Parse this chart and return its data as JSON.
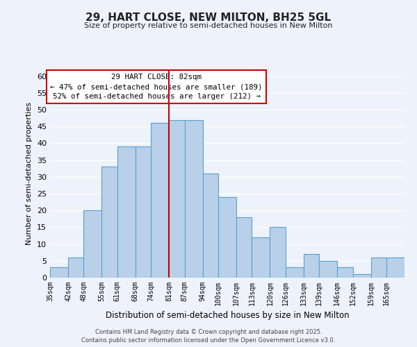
{
  "title": "29, HART CLOSE, NEW MILTON, BH25 5GL",
  "subtitle": "Size of property relative to semi-detached houses in New Milton",
  "xlabel": "Distribution of semi-detached houses by size in New Milton",
  "ylabel": "Number of semi-detached properties",
  "bin_labels": [
    "35sqm",
    "42sqm",
    "48sqm",
    "55sqm",
    "61sqm",
    "68sqm",
    "74sqm",
    "81sqm",
    "87sqm",
    "94sqm",
    "100sqm",
    "107sqm",
    "113sqm",
    "120sqm",
    "126sqm",
    "133sqm",
    "139sqm",
    "146sqm",
    "152sqm",
    "159sqm",
    "165sqm"
  ],
  "bin_edges": [
    35,
    42,
    48,
    55,
    61,
    68,
    74,
    81,
    87,
    94,
    100,
    107,
    113,
    120,
    126,
    133,
    139,
    146,
    152,
    159,
    165,
    172
  ],
  "counts": [
    3,
    6,
    20,
    33,
    39,
    39,
    46,
    47,
    47,
    31,
    24,
    18,
    12,
    15,
    3,
    7,
    5,
    3,
    1,
    6,
    6
  ],
  "bar_color": "#b8d0e8",
  "bar_edge_color": "#5a9fd4",
  "vline_x": 81,
  "vline_color": "#cc0000",
  "annotation_line1": "29 HART CLOSE: 82sqm",
  "annotation_line2": "← 47% of semi-detached houses are smaller (189)",
  "annotation_line3": "52% of semi-detached houses are larger (212) →",
  "annotation_box_color": "#ffffff",
  "annotation_box_edge": "#cc0000",
  "ylim": [
    0,
    62
  ],
  "yticks": [
    0,
    5,
    10,
    15,
    20,
    25,
    30,
    35,
    40,
    45,
    50,
    55,
    60
  ],
  "bg_color": "#eef2fb",
  "grid_color": "#ffffff",
  "footer_line1": "Contains HM Land Registry data © Crown copyright and database right 2025.",
  "footer_line2": "Contains public sector information licensed under the Open Government Licence v3.0."
}
